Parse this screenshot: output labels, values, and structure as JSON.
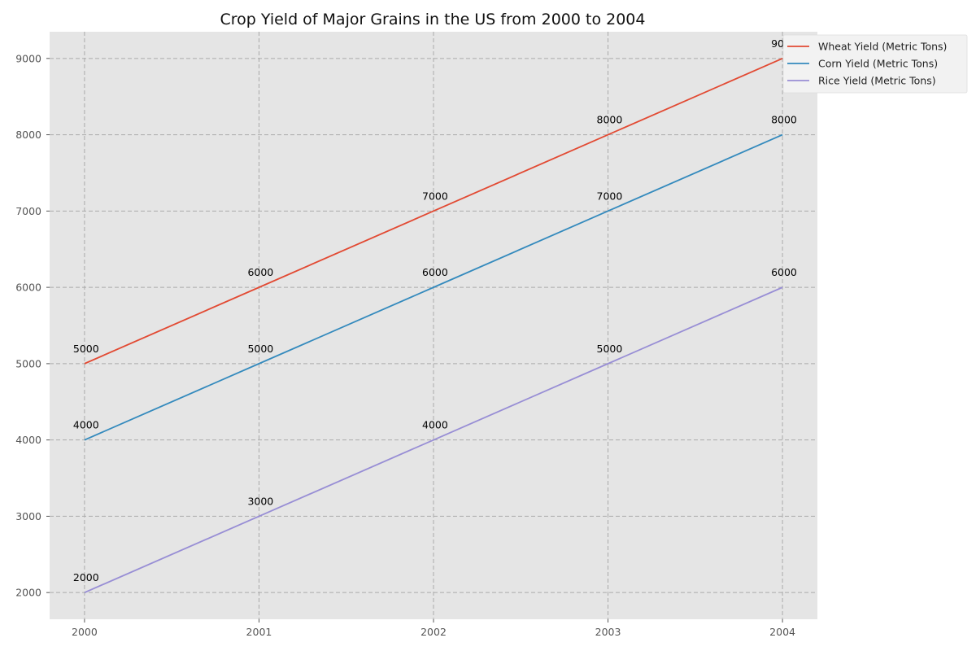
{
  "chart_data": {
    "type": "line",
    "title": "Crop Yield of Major Grains in the US from 2000 to 2004",
    "xlabel": "",
    "ylabel": "",
    "x": [
      2000,
      2001,
      2002,
      2003,
      2004
    ],
    "x_tick_labels": [
      "2000",
      "2001",
      "2002",
      "2003",
      "2004"
    ],
    "y_ticks": [
      2000,
      3000,
      4000,
      5000,
      6000,
      7000,
      8000,
      9000
    ],
    "xlim": [
      1999.8,
      2004.2
    ],
    "ylim": [
      1650,
      9350
    ],
    "grid": true,
    "legend_position": "top-right (outside plot)",
    "series": [
      {
        "name": "Wheat Yield (Metric Tons)",
        "values": [
          5000,
          6000,
          7000,
          8000,
          9000
        ],
        "color": "#E24A33"
      },
      {
        "name": "Corn Yield (Metric Tons)",
        "values": [
          4000,
          5000,
          6000,
          7000,
          8000
        ],
        "color": "#348ABD"
      },
      {
        "name": "Rice Yield (Metric Tons)",
        "values": [
          2000,
          3000,
          4000,
          5000,
          6000
        ],
        "color": "#988ED5"
      }
    ]
  },
  "colors": {
    "plot_background": "#E5E5E5",
    "grid": "#AAAAAA",
    "legend_background": "#F2F2F2"
  }
}
